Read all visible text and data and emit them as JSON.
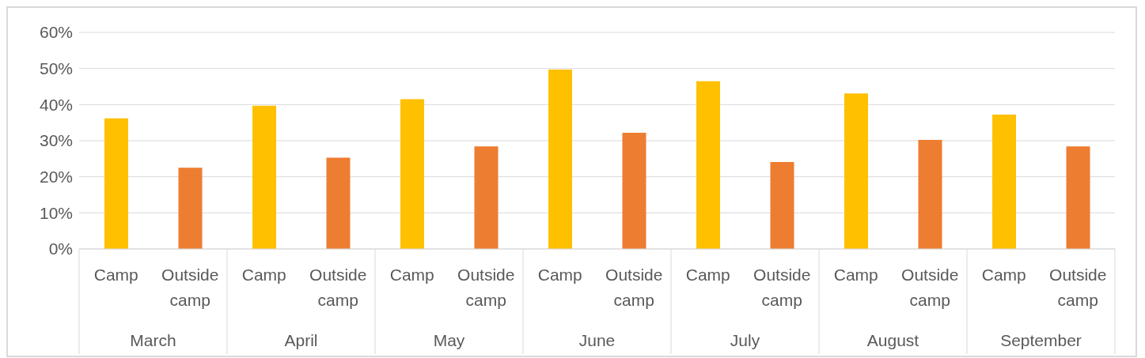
{
  "chart_data": {
    "type": "bar",
    "categories": [
      "March",
      "April",
      "May",
      "June",
      "July",
      "August",
      "September"
    ],
    "series": [
      {
        "name": "Camp",
        "color": "#ffc000",
        "values": [
          36.2,
          39.7,
          41.5,
          49.7,
          46.5,
          43.1,
          37.2
        ]
      },
      {
        "name": "Outside camp",
        "color": "#ed7d31",
        "values": [
          22.5,
          25.3,
          28.4,
          32.2,
          24.1,
          30.2,
          28.4
        ]
      }
    ],
    "ylim": [
      0,
      60
    ],
    "yticks": [
      {
        "value": 0,
        "label": "0%"
      },
      {
        "value": 10,
        "label": "10%"
      },
      {
        "value": 20,
        "label": "20%"
      },
      {
        "value": 30,
        "label": "30%"
      },
      {
        "value": 40,
        "label": "40%"
      },
      {
        "value": 50,
        "label": "50%"
      },
      {
        "value": 60,
        "label": "60%"
      }
    ],
    "grid": "y",
    "legend": false
  }
}
